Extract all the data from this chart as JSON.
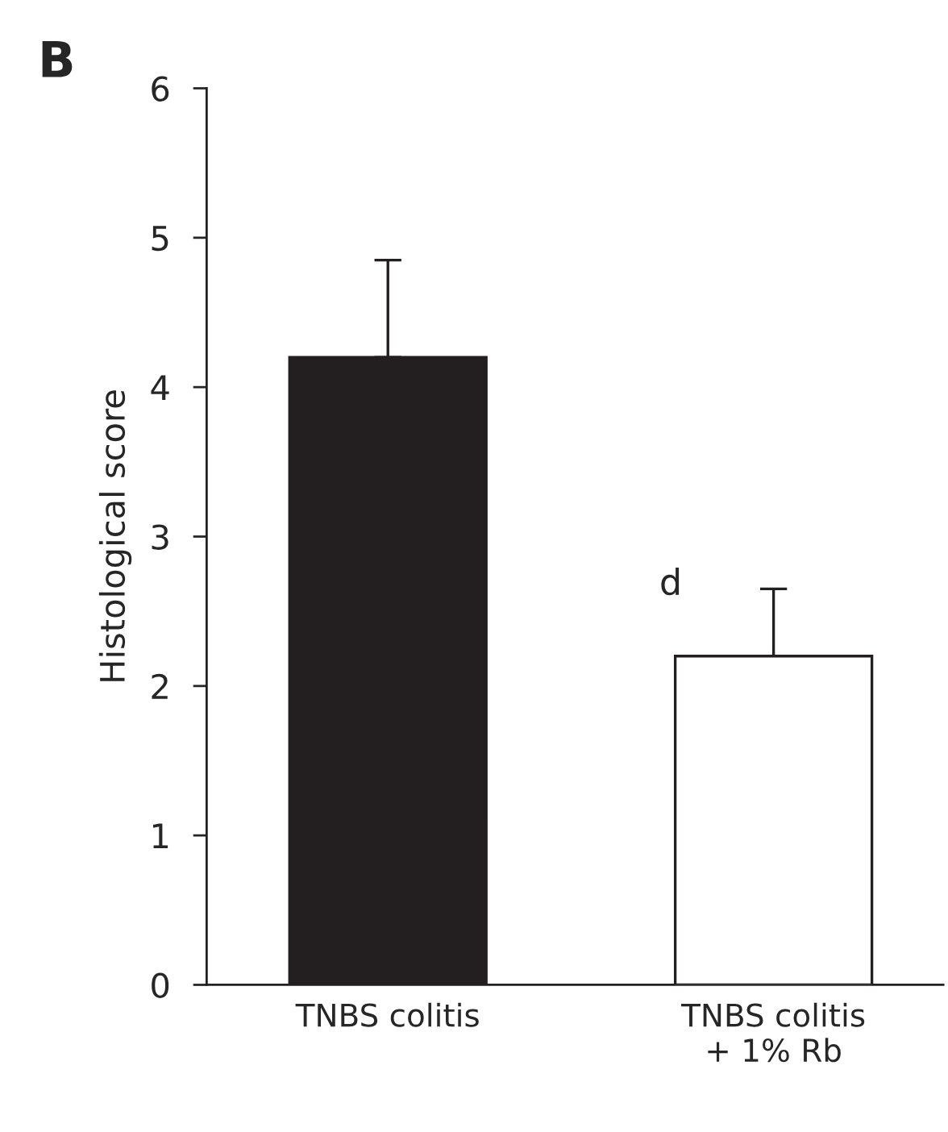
{
  "chart_data": {
    "type": "bar",
    "ylabel": "Histological score",
    "categories": [
      "TNBS colitis",
      "TNBS colitis\n+ 1% Rb"
    ],
    "values": [
      4.2,
      2.2
    ],
    "colors": [
      "#231f20",
      "#ffffff"
    ],
    "errors": [
      [
        4.2,
        4.85
      ],
      [
        2.2,
        2.65
      ]
    ],
    "ylim": [
      0,
      6
    ],
    "yticks": [
      0,
      1,
      2,
      3,
      4,
      5,
      6
    ],
    "annotations": [
      "B",
      "d"
    ]
  }
}
